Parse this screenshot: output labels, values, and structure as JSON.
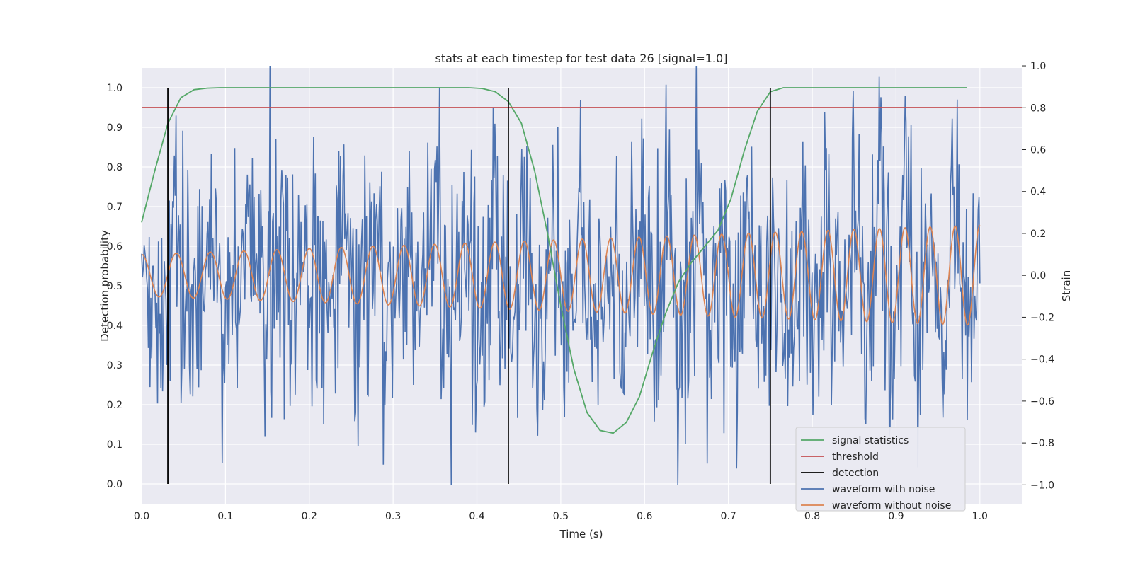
{
  "chart_data": {
    "type": "line",
    "title": "stats at each timestep for test data 26 [signal=1.0]",
    "xlabel": "Time (s)",
    "ylabel_left": "Detection probability",
    "ylabel_right": "Strain",
    "xlim": [
      0.0,
      1.05
    ],
    "ylim_left": [
      -0.05,
      1.05
    ],
    "ylim_right": [
      -1.09,
      0.99
    ],
    "xticks": [
      0.0,
      0.1,
      0.2,
      0.3,
      0.4,
      0.5,
      0.6,
      0.7,
      0.8,
      0.9,
      1.0
    ],
    "yticks_left": [
      0.0,
      0.1,
      0.2,
      0.3,
      0.4,
      0.5,
      0.6,
      0.7,
      0.8,
      0.9,
      1.0
    ],
    "yticks_right": [
      -1.0,
      -0.8,
      -0.6,
      -0.4,
      -0.2,
      0.0,
      0.2,
      0.4,
      0.6,
      0.8,
      1.0
    ],
    "grid": true,
    "legend_position": "bottom-right",
    "series": [
      {
        "name": "signal statistics",
        "axis": "left",
        "color": "#55a868",
        "x": [
          0.0,
          0.0156,
          0.0313,
          0.0469,
          0.0625,
          0.0781,
          0.0938,
          0.1094,
          0.125,
          0.1406,
          0.1563,
          0.1719,
          0.1875,
          0.2031,
          0.2188,
          0.2344,
          0.25,
          0.2656,
          0.2813,
          0.2969,
          0.3125,
          0.3281,
          0.3438,
          0.3594,
          0.375,
          0.3906,
          0.4063,
          0.4219,
          0.4375,
          0.4531,
          0.4688,
          0.4844,
          0.5,
          0.5156,
          0.5313,
          0.5469,
          0.5625,
          0.5781,
          0.5938,
          0.6094,
          0.625,
          0.6406,
          0.6563,
          0.6719,
          0.6875,
          0.7031,
          0.7188,
          0.7344,
          0.75,
          0.7656,
          0.7813,
          0.7969,
          0.8125,
          0.8281,
          0.8438,
          0.8594,
          0.875,
          0.8906,
          0.9063,
          0.9219,
          0.9375,
          0.9531,
          0.9688,
          0.9844
        ],
        "values": [
          0.66,
          0.79,
          0.91,
          0.975,
          0.995,
          0.999,
          1.0,
          1.0,
          1.0,
          1.0,
          1.0,
          1.0,
          1.0,
          1.0,
          1.0,
          1.0,
          1.0,
          1.0,
          1.0,
          1.0,
          1.0,
          1.0,
          1.0,
          1.0,
          1.0,
          1.0,
          0.998,
          0.99,
          0.965,
          0.91,
          0.79,
          0.63,
          0.45,
          0.29,
          0.18,
          0.135,
          0.128,
          0.155,
          0.22,
          0.33,
          0.43,
          0.51,
          0.56,
          0.6,
          0.64,
          0.72,
          0.84,
          0.94,
          0.99,
          1.0,
          1.0,
          1.0,
          1.0,
          1.0,
          1.0,
          1.0,
          1.0,
          1.0,
          1.0,
          1.0,
          1.0,
          1.0,
          1.0,
          1.0
        ]
      },
      {
        "name": "threshold",
        "axis": "left",
        "color": "#c44e52",
        "x": [
          0.0,
          1.05
        ],
        "values": [
          0.95,
          0.95
        ]
      },
      {
        "name": "detection",
        "axis": "left",
        "color": "#000000",
        "segments": [
          {
            "x": 0.0313,
            "y0": 0.0,
            "y1": 1.0
          },
          {
            "x": 0.4375,
            "y0": 0.0,
            "y1": 1.0
          },
          {
            "x": 0.75,
            "y0": 0.0,
            "y1": 1.0
          }
        ]
      },
      {
        "name": "waveform with noise",
        "axis": "right",
        "color": "#4c72b0",
        "note_generated": true,
        "x_start": 0.0,
        "x_end": 1.0,
        "count": 1000,
        "y_range": [
          -1.0,
          1.0
        ]
      },
      {
        "name": "waveform without noise",
        "axis": "right",
        "color": "#dd8452",
        "x_start": 0.0,
        "x_end": 1.0,
        "amplitude_start": 0.1,
        "amplitude_end": 0.24,
        "freq_start_hz": 24,
        "freq_end_hz": 29
      }
    ]
  },
  "legend": [
    {
      "label": "signal statistics",
      "color": "#55a868"
    },
    {
      "label": "threshold",
      "color": "#c44e52"
    },
    {
      "label": "detection",
      "color": "#000000"
    },
    {
      "label": "waveform with noise",
      "color": "#4c72b0"
    },
    {
      "label": "waveform without noise",
      "color": "#dd8452"
    }
  ]
}
